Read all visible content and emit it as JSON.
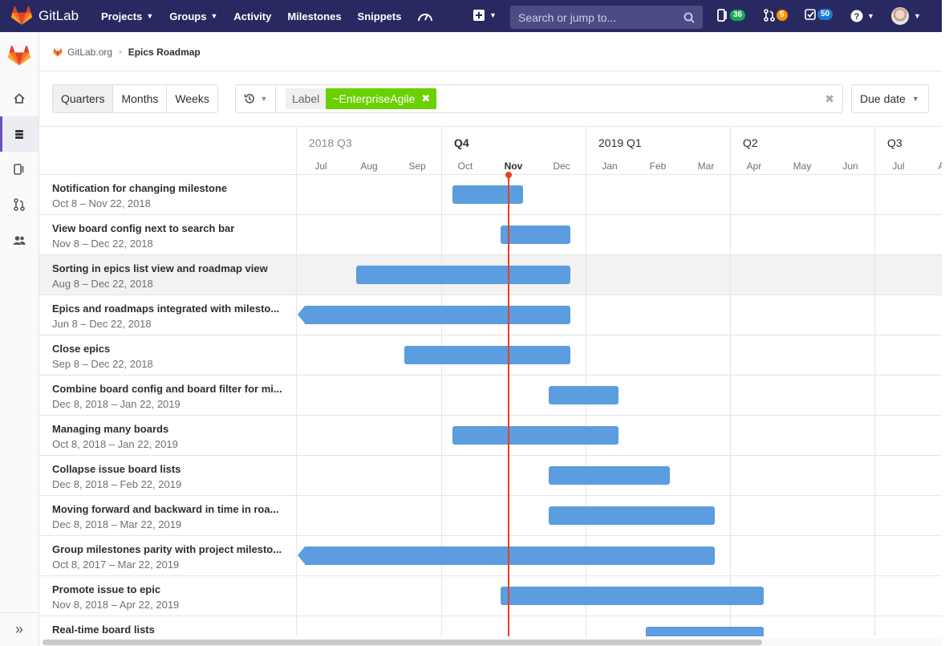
{
  "navbar": {
    "brand": "GitLab",
    "items": [
      {
        "label": "Projects",
        "dropdown": true
      },
      {
        "label": "Groups",
        "dropdown": true
      },
      {
        "label": "Activity",
        "dropdown": false
      },
      {
        "label": "Milestones",
        "dropdown": false
      },
      {
        "label": "Snippets",
        "dropdown": false
      }
    ],
    "search_placeholder": "Search or jump to...",
    "issues_count": "36",
    "merge_requests_count": "5",
    "todos_count": "50",
    "colors": {
      "bg": "#292961",
      "issues": "#1aaa55",
      "mrs": "#fc9403",
      "todos": "#1f78d1"
    }
  },
  "breadcrumb": {
    "group": "GitLab.org",
    "current": "Epics Roadmap"
  },
  "toolbar": {
    "presets": [
      {
        "label": "Quarters",
        "active": true
      },
      {
        "label": "Months",
        "active": false
      },
      {
        "label": "Weeks",
        "active": false
      }
    ],
    "filter_token_name": "Label",
    "filter_token_value": "~EnterpriseAgile",
    "sort_label": "Due date"
  },
  "timeline": {
    "quarters": [
      {
        "label": "2018 Q3",
        "state": "past"
      },
      {
        "label": "Q4",
        "state": "current"
      },
      {
        "label": "2019 Q1",
        "state": "future"
      },
      {
        "label": "Q2",
        "state": "future"
      },
      {
        "label": "Q3",
        "state": "future"
      }
    ],
    "months": [
      "Jul",
      "Aug",
      "Sep",
      "Oct",
      "Nov",
      "Dec",
      "Jan",
      "Feb",
      "Mar",
      "Apr",
      "May",
      "Jun",
      "Jul",
      "Aug"
    ],
    "current_month_index": 4,
    "start_month": "2018-07",
    "today": "2018-11-13"
  },
  "epics": [
    {
      "title": "Notification for changing milestone",
      "dates": "Oct 8 – Nov 22, 2018",
      "start": "2018-10-08",
      "end": "2018-11-22"
    },
    {
      "title": "View board config next to search bar",
      "dates": "Nov 8 – Dec 22, 2018",
      "start": "2018-11-08",
      "end": "2018-12-22"
    },
    {
      "title": "Sorting in epics list view and roadmap view",
      "dates": "Aug 8 – Dec 22, 2018",
      "start": "2018-08-08",
      "end": "2018-12-22",
      "highlighted": true
    },
    {
      "title": "Epics and roadmaps integrated with milesto...",
      "dates": "Jun 8 – Dec 22, 2018",
      "start": "2018-06-08",
      "end": "2018-12-22"
    },
    {
      "title": "Close epics",
      "dates": "Sep 8 – Dec 22, 2018",
      "start": "2018-09-08",
      "end": "2018-12-22"
    },
    {
      "title": "Combine board config and board filter for mi...",
      "dates": "Dec 8, 2018 – Jan 22, 2019",
      "start": "2018-12-08",
      "end": "2019-01-22"
    },
    {
      "title": "Managing many boards",
      "dates": "Oct 8, 2018 – Jan 22, 2019",
      "start": "2018-10-08",
      "end": "2019-01-22"
    },
    {
      "title": "Collapse issue board lists",
      "dates": "Dec 8, 2018 – Feb 22, 2019",
      "start": "2018-12-08",
      "end": "2019-02-22"
    },
    {
      "title": "Moving forward and backward in time in roa...",
      "dates": "Dec 8, 2018 – Mar 22, 2019",
      "start": "2018-12-08",
      "end": "2019-03-22"
    },
    {
      "title": "Group milestones parity with project milesto...",
      "dates": "Oct 8, 2017 – Mar 22, 2019",
      "start": "2017-10-08",
      "end": "2019-03-22"
    },
    {
      "title": "Promote issue to epic",
      "dates": "Nov 8, 2018 – Apr 22, 2019",
      "start": "2018-11-08",
      "end": "2019-04-22"
    },
    {
      "title": "Real-time board lists",
      "dates": "",
      "start": "2019-02-08",
      "end": "2019-04-22"
    }
  ],
  "bar_color": "#5b9ddf",
  "today_color": "#e24329"
}
